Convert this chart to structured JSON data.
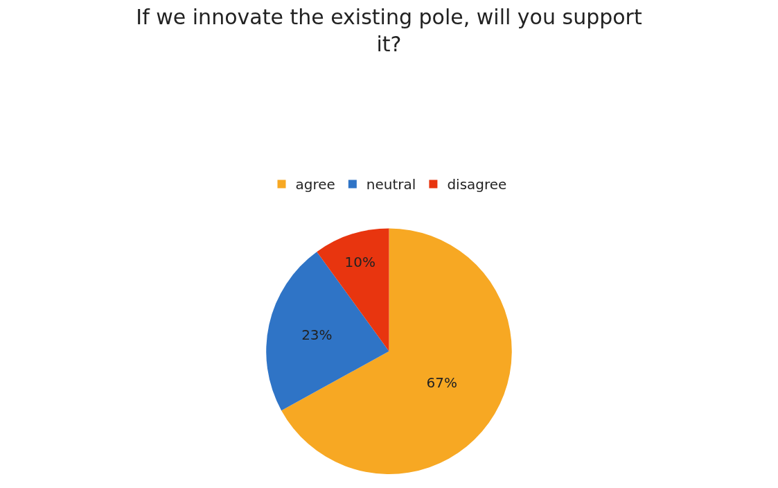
{
  "chart_data": {
    "type": "pie",
    "title": "If we innovate the existing pole, will you support it?",
    "categories": [
      "agree",
      "neutral",
      "disagree"
    ],
    "values": [
      67,
      23,
      10
    ],
    "value_labels": [
      "67%",
      "23%",
      "10%"
    ],
    "colors": [
      "#f7a823",
      "#2f74c6",
      "#e8350f"
    ],
    "legend": "top"
  }
}
